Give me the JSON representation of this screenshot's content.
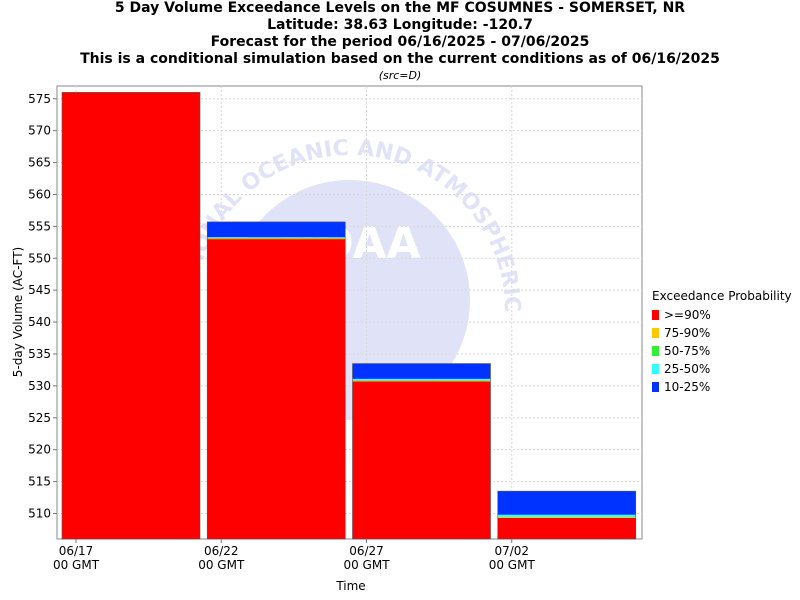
{
  "titles": {
    "line1": "5 Day Volume Exceedance Levels on the MF COSUMNES - SOMERSET, NR",
    "line2": "Latitude: 38.63 Longitude: -120.7",
    "line3": "Forecast for the period 06/16/2025 - 07/06/2025",
    "line4": "This is a conditional simulation based on the current conditions as of 06/16/2025",
    "src": "(src=D)"
  },
  "legend": {
    "title": "Exceedance Probability",
    "items": [
      {
        "label": ">=90%",
        "color": "#ff0000"
      },
      {
        "label": "75-90%",
        "color": "#ffc800"
      },
      {
        "label": "50-75%",
        "color": "#33ee33"
      },
      {
        "label": "25-50%",
        "color": "#33ffff"
      },
      {
        "label": "10-25%",
        "color": "#0033ff"
      }
    ]
  },
  "watermark": {
    "arc_text": "NATIONAL OCEANIC AND ATMOSPHERIC ADMINISTRATION",
    "logo_text": "NOAA"
  },
  "chart_data": {
    "type": "bar",
    "stacked": true,
    "xlabel": "Time",
    "ylabel": "5-day Volume (AC-FT)",
    "ylim": [
      506,
      577
    ],
    "yticks": [
      510,
      515,
      520,
      525,
      530,
      535,
      540,
      545,
      550,
      555,
      560,
      565,
      570,
      575
    ],
    "grid": true,
    "legend_position": "right",
    "xticks": [
      {
        "line1": "06/17",
        "line2": "00 GMT"
      },
      {
        "line1": "06/22",
        "line2": "00 GMT"
      },
      {
        "line1": "06/27",
        "line2": "00 GMT"
      },
      {
        "line1": "07/02",
        "line2": "00 GMT"
      }
    ],
    "bars": [
      {
        "start": "06/17",
        "levels": {
          ">=90%": 576.0,
          "75-90%": 576.0,
          "50-75%": 576.0,
          "25-50%": 576.0,
          "10-25%": 576.0
        }
      },
      {
        "start": "06/22",
        "levels": {
          ">=90%": 553.0,
          "75-90%": 553.1,
          "50-75%": 553.2,
          "25-50%": 553.3,
          "10-25%": 555.7
        }
      },
      {
        "start": "06/27",
        "levels": {
          ">=90%": 530.7,
          "75-90%": 530.8,
          "50-75%": 530.9,
          "25-50%": 531.1,
          "10-25%": 533.5
        }
      },
      {
        "start": "07/02",
        "levels": {
          ">=90%": 509.3,
          "75-90%": 509.4,
          "50-75%": 509.5,
          "25-50%": 509.8,
          "10-25%": 513.5
        }
      }
    ]
  }
}
